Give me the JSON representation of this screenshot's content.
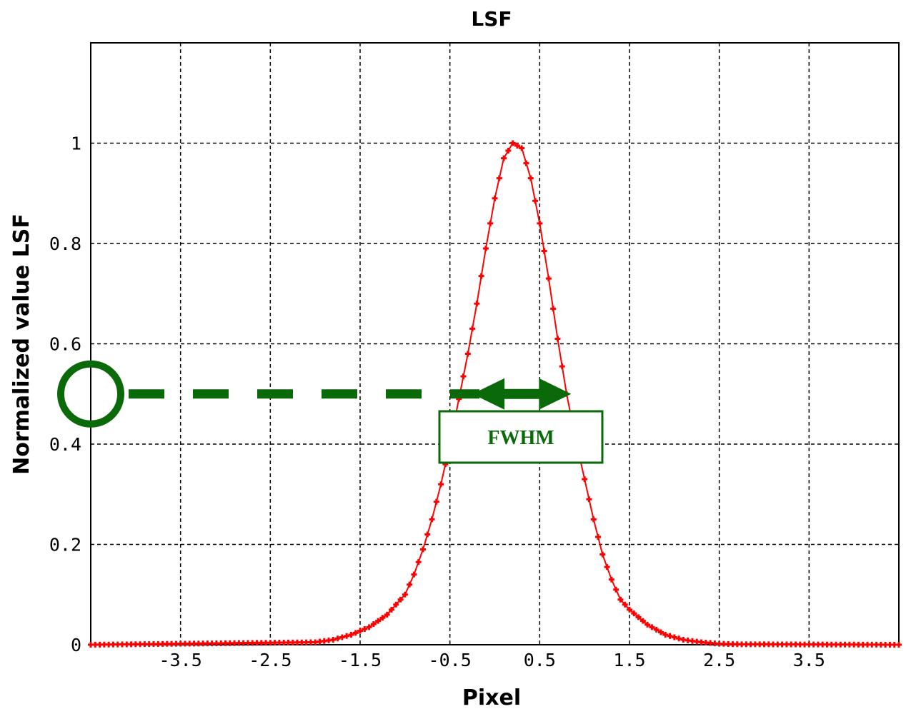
{
  "chart_data": {
    "type": "line",
    "title": "LSF",
    "xlabel": "Pixel",
    "ylabel": "Normalized value LSF",
    "xlim": [
      -4.5,
      4.5
    ],
    "ylim": [
      0,
      1.2
    ],
    "xticks": [
      -3.5,
      -2.5,
      -1.5,
      -0.5,
      0.5,
      1.5,
      2.5,
      3.5
    ],
    "xtick_labels": [
      "-3.5",
      "-2.5",
      "-1.5",
      "-0.5",
      "0.5",
      "1.5",
      "2.5",
      "3.5"
    ],
    "yticks": [
      0,
      0.2,
      0.4,
      0.6,
      0.8,
      1
    ],
    "ytick_labels": [
      "0",
      "0.2",
      "0.4",
      "0.6",
      "0.8",
      "1"
    ],
    "grid": true,
    "series": [
      {
        "color": "#ff0000",
        "marker": "plus",
        "x": [
          -4.5,
          -2.0,
          -1.8,
          -1.6,
          -1.4,
          -1.2,
          -1.0,
          -0.9,
          -0.8,
          -0.7,
          -0.6,
          -0.5,
          -0.4,
          -0.3,
          -0.2,
          -0.1,
          0.0,
          0.1,
          0.2,
          0.3,
          0.4,
          0.5,
          0.6,
          0.7,
          0.8,
          0.9,
          1.0,
          1.1,
          1.2,
          1.3,
          1.4,
          1.5,
          1.7,
          1.9,
          2.1,
          2.3,
          2.5,
          2.7,
          4.5
        ],
        "y": [
          0,
          0.005,
          0.01,
          0.02,
          0.035,
          0.06,
          0.1,
          0.14,
          0.19,
          0.25,
          0.32,
          0.4,
          0.49,
          0.58,
          0.68,
          0.79,
          0.89,
          0.97,
          1.0,
          0.99,
          0.93,
          0.84,
          0.73,
          0.61,
          0.5,
          0.41,
          0.33,
          0.25,
          0.18,
          0.13,
          0.09,
          0.07,
          0.04,
          0.02,
          0.01,
          0.005,
          0.002,
          0.001,
          0
        ]
      }
    ],
    "annotations": {
      "level": 0.5,
      "arrow_from": -0.25,
      "arrow_to": 0.85,
      "label": "FWHM",
      "color": "#0a6a0a"
    }
  }
}
